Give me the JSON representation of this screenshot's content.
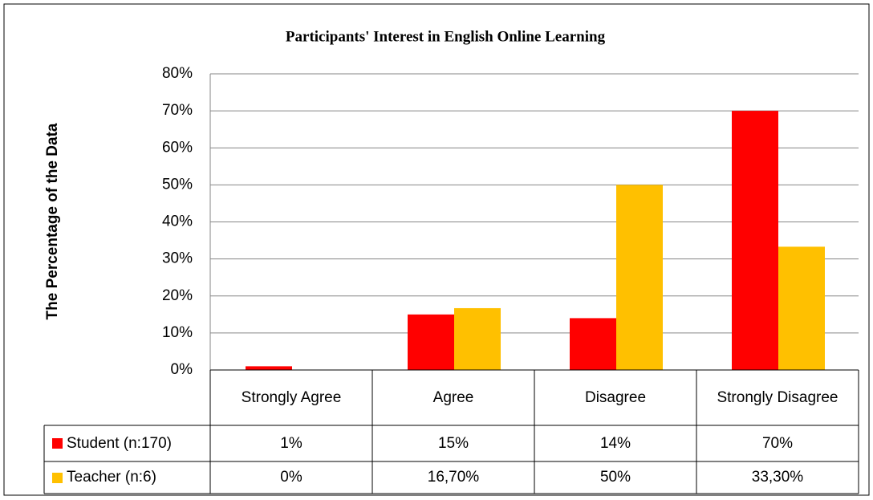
{
  "chart_data": {
    "type": "bar",
    "title": "Participants' Interest in English Online Learning",
    "y_label": "The Percentage of the Data",
    "categories": [
      "Strongly Agree",
      "Agree",
      "Disagree",
      "Strongly Disagree"
    ],
    "series": [
      {
        "name": "Student (n:170)",
        "color": "#ff0000",
        "values": [
          1,
          15,
          14,
          70
        ],
        "value_labels": [
          "1%",
          "15%",
          "14%",
          "70%"
        ]
      },
      {
        "name": "Teacher (n:6)",
        "color": "#ffc000",
        "values": [
          0,
          16.7,
          50,
          33.3
        ],
        "value_labels": [
          "0%",
          "16,70%",
          "50%",
          "33,30%"
        ]
      }
    ],
    "ylim": [
      0,
      80
    ],
    "yticks": [
      {
        "value": 0,
        "label": "0%"
      },
      {
        "value": 10,
        "label": "10%"
      },
      {
        "value": 20,
        "label": "20%"
      },
      {
        "value": 30,
        "label": "30%"
      },
      {
        "value": 40,
        "label": "40%"
      },
      {
        "value": 50,
        "label": "50%"
      },
      {
        "value": 60,
        "label": "60%"
      },
      {
        "value": 70,
        "label": "70%"
      },
      {
        "value": 80,
        "label": "80%"
      }
    ],
    "grid": true
  }
}
